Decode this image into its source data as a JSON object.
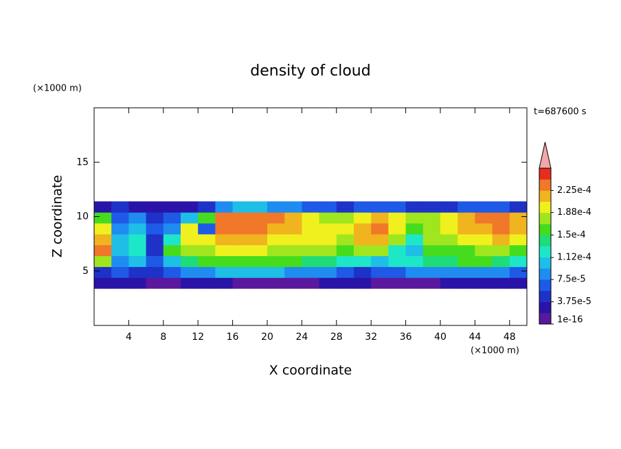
{
  "chart_data": {
    "type": "contour",
    "title": "density of cloud",
    "xlabel": "X coordinate",
    "ylabel": "Z coordinate",
    "xunit": "(×1000 m)",
    "yunit": "(×1000 m)",
    "time_label": "t=687600 s",
    "xlim": [
      0,
      50
    ],
    "ylim": [
      0,
      20
    ],
    "xticks": [
      4,
      8,
      12,
      16,
      20,
      24,
      28,
      32,
      36,
      40,
      44,
      48
    ],
    "yticks": [
      5,
      10,
      15
    ],
    "x": [
      0,
      2,
      4,
      6,
      8,
      10,
      12,
      14,
      16,
      18,
      20,
      22,
      24,
      26,
      28,
      30,
      32,
      34,
      36,
      38,
      40,
      42,
      44,
      46,
      48,
      50
    ],
    "y": [
      3.4,
      4.4,
      5.4,
      6.4,
      7.4,
      8.4,
      9.4,
      10.4,
      11.4
    ],
    "z": [
      [
        2e-05,
        2e-05,
        2e-05,
        1.5e-05,
        1.5e-05,
        2e-05,
        2e-05,
        2e-05,
        1.5e-05,
        1.5e-05,
        1.5e-05,
        1.5e-05,
        1.5e-05,
        2e-05,
        2e-05,
        2e-05,
        1.5e-05,
        1.5e-05,
        1.5e-05,
        1.5e-05,
        2e-05,
        2e-05,
        2e-05,
        2e-05,
        2e-05
      ],
      [
        4e-05,
        6e-05,
        5e-05,
        4e-05,
        6e-05,
        8e-05,
        9e-05,
        0.0001,
        0.00011,
        0.00011,
        0.0001,
        9e-05,
        9e-05,
        8e-05,
        6e-05,
        5e-05,
        6e-05,
        7e-05,
        8e-05,
        8e-05,
        9e-05,
        9e-05,
        9e-05,
        8e-05,
        7e-05
      ],
      [
        0.00018,
        9e-05,
        0.00011,
        6e-05,
        0.00011,
        0.00014,
        0.00015,
        0.00016,
        0.00016,
        0.00016,
        0.00015,
        0.00015,
        0.00014,
        0.00014,
        0.00013,
        0.00012,
        0.00011,
        0.00012,
        0.00013,
        0.00014,
        0.00014,
        0.00015,
        0.00015,
        0.00014,
        0.00013
      ],
      [
        0.00023,
        0.0001,
        0.00013,
        5e-05,
        0.00015,
        0.00018,
        0.00018,
        0.00019,
        0.00019,
        0.00019,
        0.00018,
        0.00018,
        0.00017,
        0.00017,
        0.00016,
        0.00017,
        0.00018,
        0.00012,
        0.0001,
        0.00015,
        0.00015,
        0.00016,
        0.00017,
        0.00017,
        0.00016
      ],
      [
        0.00022,
        0.00011,
        0.00012,
        4e-05,
        0.00012,
        0.0002,
        0.00019,
        0.00021,
        0.00021,
        0.00021,
        0.0002,
        0.0002,
        0.00019,
        0.00019,
        0.00018,
        0.00021,
        0.00022,
        0.00017,
        0.00013,
        0.00017,
        0.00018,
        0.00019,
        0.0002,
        0.00021,
        0.0002
      ],
      [
        0.0002,
        8e-05,
        0.0001,
        6e-05,
        9e-05,
        0.00019,
        6e-05,
        0.00023,
        0.00023,
        0.00023,
        0.00022,
        0.00021,
        0.0002,
        0.00019,
        0.0002,
        0.00022,
        0.00023,
        0.0002,
        0.00016,
        0.00017,
        0.00019,
        0.00021,
        0.00022,
        0.00023,
        0.00022
      ],
      [
        0.00015,
        7e-05,
        9e-05,
        5e-05,
        6e-05,
        0.0001,
        0.00016,
        0.00023,
        0.00024,
        0.00024,
        0.00023,
        0.00022,
        0.0002,
        0.00018,
        0.00018,
        0.0002,
        0.00021,
        0.00019,
        0.00017,
        0.00017,
        0.00019,
        0.00021,
        0.00023,
        0.00023,
        0.00022
      ],
      [
        3e-05,
        4e-05,
        3e-05,
        3e-05,
        2e-05,
        3e-05,
        4e-05,
        8e-05,
        0.0001,
        0.0001,
        9e-05,
        8e-05,
        7e-05,
        6e-05,
        5e-05,
        6e-05,
        7e-05,
        6e-05,
        5e-05,
        5e-05,
        5e-05,
        6e-05,
        7e-05,
        7e-05,
        5e-05
      ]
    ],
    "clim": [
      0,
      0.0002625
    ],
    "colors": [
      "#5a189e",
      "#2a14a8",
      "#1e32c8",
      "#1e5ae6",
      "#1e8cf0",
      "#1ebee6",
      "#1ee6c8",
      "#1edc78",
      "#46dc1e",
      "#a0e61e",
      "#f0f01e",
      "#f0b41e",
      "#f07828",
      "#e62d1e"
    ],
    "extend_color": "#f0a8a8",
    "cticks": [
      1e-16,
      {
        "value": 3.75e-05,
        "label": "3.75e-5"
      },
      {
        "value": 7.5e-05,
        "label": "7.5e-5"
      },
      {
        "value": 0.000112,
        "label": "1.12e-4"
      },
      {
        "value": 0.00015,
        "label": "1.5e-4"
      },
      {
        "value": 0.000188,
        "label": "1.88e-4"
      },
      {
        "value": 0.000225,
        "label": "2.25e-4"
      }
    ]
  }
}
